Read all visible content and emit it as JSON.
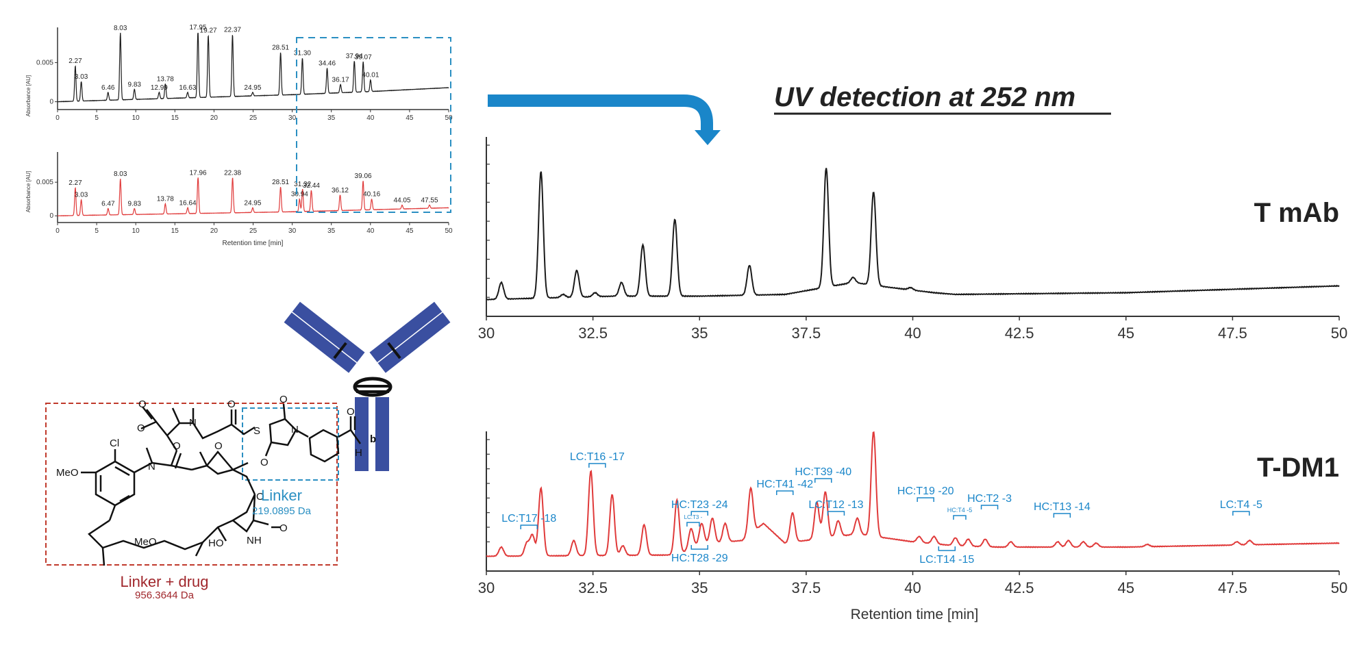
{
  "headline": "UV detection at 252 nm",
  "colors": {
    "black_trace": "#1a1a1a",
    "red_trace": "#e03a3a",
    "blue": "#1a86c9",
    "antibody": "#3a4fa0",
    "drug_box": "#c0392b",
    "linker_box": "#2a8fc2"
  },
  "chart_data": [
    {
      "id": "overview_top",
      "type": "line",
      "ylabel": "Absorbance [AU]",
      "xlabel": "",
      "xlim": [
        0,
        50
      ],
      "ylim": [
        -0.001,
        0.0095
      ],
      "xticks": [
        "0",
        "5",
        "10",
        "15",
        "20",
        "25",
        "30",
        "35",
        "40",
        "45",
        "50"
      ],
      "yticks": [
        "0",
        "0.005"
      ],
      "baseline": [
        [
          0,
          0.0
        ],
        [
          10,
          0.0003
        ],
        [
          20,
          0.0006
        ],
        [
          30,
          0.0009
        ],
        [
          40,
          0.0013
        ],
        [
          50,
          0.0018
        ]
      ],
      "peaks": [
        {
          "x": 2.27,
          "y": 0.0046,
          "label": "2.27"
        },
        {
          "x": 3.03,
          "y": 0.0026,
          "label": "3.03"
        },
        {
          "x": 6.46,
          "y": 0.0012,
          "label": "6.46"
        },
        {
          "x": 8.03,
          "y": 0.0088,
          "label": "8.03"
        },
        {
          "x": 9.83,
          "y": 0.0016,
          "label": "9.83"
        },
        {
          "x": 12.99,
          "y": 0.0012,
          "label": "12.99"
        },
        {
          "x": 13.78,
          "y": 0.0023,
          "label": "13.78"
        },
        {
          "x": 16.63,
          "y": 0.0012,
          "label": "16.63"
        },
        {
          "x": 17.95,
          "y": 0.0089,
          "label": "17.95"
        },
        {
          "x": 19.27,
          "y": 0.0085,
          "label": "19.27"
        },
        {
          "x": 22.37,
          "y": 0.0086,
          "label": "22.37"
        },
        {
          "x": 24.95,
          "y": 0.0012,
          "label": "24.95"
        },
        {
          "x": 28.51,
          "y": 0.0063,
          "label": "28.51"
        },
        {
          "x": 31.3,
          "y": 0.0056,
          "label": "31.30"
        },
        {
          "x": 34.46,
          "y": 0.0043,
          "label": "34.46"
        },
        {
          "x": 36.17,
          "y": 0.0022,
          "label": "36.17"
        },
        {
          "x": 37.94,
          "y": 0.0052,
          "label": "37.94"
        },
        {
          "x": 39.07,
          "y": 0.0051,
          "label": "39.07"
        },
        {
          "x": 40.01,
          "y": 0.0028,
          "label": "40.01"
        }
      ]
    },
    {
      "id": "overview_bottom",
      "type": "line",
      "ylabel": "Absorbance [AU]",
      "xlabel": "Retention time [min]",
      "xlim": [
        0,
        50
      ],
      "ylim": [
        -0.001,
        0.0095
      ],
      "xticks": [
        "0",
        "5",
        "10",
        "15",
        "20",
        "25",
        "30",
        "35",
        "40",
        "45",
        "50"
      ],
      "yticks": [
        "0",
        "0.005"
      ],
      "baseline": [
        [
          0,
          0.0
        ],
        [
          10,
          0.0002
        ],
        [
          20,
          0.0004
        ],
        [
          30,
          0.0006
        ],
        [
          40,
          0.0009
        ],
        [
          50,
          0.0012
        ]
      ],
      "peaks": [
        {
          "x": 2.27,
          "y": 0.0042,
          "label": "2.27"
        },
        {
          "x": 3.03,
          "y": 0.0024,
          "label": "3.03"
        },
        {
          "x": 6.47,
          "y": 0.0011,
          "label": "6.47"
        },
        {
          "x": 8.03,
          "y": 0.0055,
          "label": "8.03"
        },
        {
          "x": 9.83,
          "y": 0.0011,
          "label": "9.83"
        },
        {
          "x": 13.78,
          "y": 0.0018,
          "label": "13.78"
        },
        {
          "x": 16.64,
          "y": 0.0012,
          "label": "16.64"
        },
        {
          "x": 17.96,
          "y": 0.0057,
          "label": "17.96"
        },
        {
          "x": 22.38,
          "y": 0.0057,
          "label": "22.38"
        },
        {
          "x": 24.95,
          "y": 0.0012,
          "label": "24.95"
        },
        {
          "x": 28.51,
          "y": 0.0043,
          "label": "28.51"
        },
        {
          "x": 30.94,
          "y": 0.0025,
          "label": "30.94"
        },
        {
          "x": 31.32,
          "y": 0.004,
          "label": "31.32"
        },
        {
          "x": 32.44,
          "y": 0.0038,
          "label": "32.44"
        },
        {
          "x": 36.12,
          "y": 0.0031,
          "label": "36.12"
        },
        {
          "x": 39.06,
          "y": 0.0052,
          "label": "39.06"
        },
        {
          "x": 40.16,
          "y": 0.0025,
          "label": "40.16"
        },
        {
          "x": 44.05,
          "y": 0.0016,
          "label": "44.05"
        },
        {
          "x": 47.55,
          "y": 0.0016,
          "label": "47.55"
        }
      ]
    },
    {
      "id": "zoom_t_mab",
      "type": "line",
      "series_name": "T mAb",
      "xlim": [
        30,
        50
      ],
      "ylim": [
        0,
        1.0
      ],
      "xticks": [
        "30",
        "32.5",
        "35",
        "37.5",
        "40",
        "42.5",
        "45",
        "47.5",
        "50"
      ],
      "xlabel": "",
      "baseline": [
        [
          30,
          0.05
        ],
        [
          31.5,
          0.06
        ],
        [
          33,
          0.07
        ],
        [
          35,
          0.07
        ],
        [
          37,
          0.08
        ],
        [
          38.6,
          0.15
        ],
        [
          39.5,
          0.12
        ],
        [
          40.5,
          0.09
        ],
        [
          41,
          0.08
        ],
        [
          45,
          0.09
        ],
        [
          50,
          0.13
        ]
      ],
      "peaks": [
        {
          "x": 30.35,
          "y": 0.15
        },
        {
          "x": 31.28,
          "y": 0.8
        },
        {
          "x": 31.8,
          "y": 0.08
        },
        {
          "x": 32.12,
          "y": 0.22
        },
        {
          "x": 32.55,
          "y": 0.09
        },
        {
          "x": 33.17,
          "y": 0.15
        },
        {
          "x": 33.67,
          "y": 0.37
        },
        {
          "x": 34.42,
          "y": 0.52
        },
        {
          "x": 36.17,
          "y": 0.25
        },
        {
          "x": 37.97,
          "y": 0.82
        },
        {
          "x": 38.6,
          "y": 0.18
        },
        {
          "x": 39.08,
          "y": 0.68
        },
        {
          "x": 39.95,
          "y": 0.12
        }
      ]
    },
    {
      "id": "zoom_t_dm1",
      "type": "line",
      "series_name": "T-DM1",
      "xlim": [
        30,
        50
      ],
      "ylim": [
        0,
        1.0
      ],
      "xlabel": "Retention time [min]",
      "xticks": [
        "30",
        "32.5",
        "35",
        "37.5",
        "40",
        "42.5",
        "45",
        "47.5",
        "50"
      ],
      "baseline": [
        [
          30,
          0.05
        ],
        [
          34.5,
          0.06
        ],
        [
          35,
          0.14
        ],
        [
          36,
          0.17
        ],
        [
          36.5,
          0.3
        ],
        [
          37,
          0.15
        ],
        [
          38.7,
          0.22
        ],
        [
          40,
          0.16
        ],
        [
          41,
          0.13
        ],
        [
          42,
          0.12
        ],
        [
          45,
          0.12
        ],
        [
          50,
          0.15
        ]
      ],
      "peaks": [
        {
          "x": 30.35,
          "y": 0.12
        },
        {
          "x": 30.95,
          "y": 0.15
        },
        {
          "x": 31.08,
          "y": 0.21
        },
        {
          "x": 31.28,
          "y": 0.57
        },
        {
          "x": 32.05,
          "y": 0.17
        },
        {
          "x": 32.45,
          "y": 0.7
        },
        {
          "x": 32.95,
          "y": 0.52
        },
        {
          "x": 33.2,
          "y": 0.13
        },
        {
          "x": 33.7,
          "y": 0.29
        },
        {
          "x": 34.47,
          "y": 0.48
        },
        {
          "x": 34.8,
          "y": 0.26
        },
        {
          "x": 35.05,
          "y": 0.3
        },
        {
          "x": 35.3,
          "y": 0.34
        },
        {
          "x": 35.6,
          "y": 0.3
        },
        {
          "x": 36.2,
          "y": 0.57
        },
        {
          "x": 37.18,
          "y": 0.38
        },
        {
          "x": 37.75,
          "y": 0.46
        },
        {
          "x": 37.95,
          "y": 0.54
        },
        {
          "x": 38.25,
          "y": 0.32
        },
        {
          "x": 38.7,
          "y": 0.34
        },
        {
          "x": 39.08,
          "y": 1.0
        },
        {
          "x": 40.15,
          "y": 0.2
        },
        {
          "x": 40.5,
          "y": 0.2
        },
        {
          "x": 41.0,
          "y": 0.19
        },
        {
          "x": 41.3,
          "y": 0.18
        },
        {
          "x": 41.7,
          "y": 0.18
        },
        {
          "x": 42.3,
          "y": 0.16
        },
        {
          "x": 43.4,
          "y": 0.16
        },
        {
          "x": 43.65,
          "y": 0.17
        },
        {
          "x": 44.0,
          "y": 0.16
        },
        {
          "x": 44.3,
          "y": 0.15
        },
        {
          "x": 45.5,
          "y": 0.14
        },
        {
          "x": 47.6,
          "y": 0.16
        },
        {
          "x": 47.9,
          "y": 0.17
        }
      ],
      "annotations": [
        {
          "text": "LC:T17 -18",
          "x": 31.0
        },
        {
          "text": "LC:T16 -17",
          "x": 32.6
        },
        {
          "text": "HC:T23 -24",
          "x": 35.0
        },
        {
          "text": "LC:T3 -",
          "x": 34.85
        },
        {
          "text": "HC:T28 -29",
          "x": 35.0
        },
        {
          "text": "HC:T41 -42",
          "x": 37.0
        },
        {
          "text": "HC:T39 -40",
          "x": 37.9
        },
        {
          "text": "LC:T12 -13",
          "x": 38.2
        },
        {
          "text": "HC:T19 -20",
          "x": 40.3
        },
        {
          "text": "HC:T4 -5",
          "x": 41.1
        },
        {
          "text": "HC:T2 -3",
          "x": 41.8
        },
        {
          "text": "LC:T14 -15",
          "x": 40.8
        },
        {
          "text": "HC:T13 -14",
          "x": 43.5
        },
        {
          "text": "LC:T4 -5",
          "x": 47.7
        }
      ]
    }
  ],
  "structure": {
    "meo_label": "MeO",
    "cl_label": "Cl",
    "n_label": "N",
    "o_label": "O",
    "s_label": "S",
    "h_label": "H",
    "nh_label": "NH",
    "ho_label": "HO",
    "meo2_label": "MeO",
    "linker_box_label": "Linker",
    "linker_mass": "219.0895 Da",
    "drug_box_label": "Linker + drug",
    "drug_mass": "956.3644 Da",
    "b_label": "b"
  }
}
